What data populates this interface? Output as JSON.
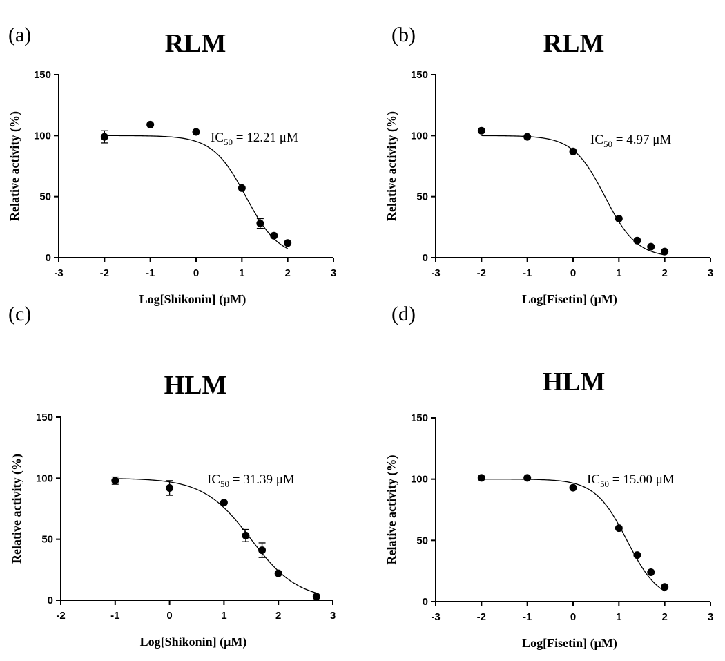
{
  "chart_data": [
    {
      "panel": "(a)",
      "type": "scatter",
      "title": "RLM",
      "xlabel": "Log[Shikonin] (μM)",
      "ylabel": "Relative activity (%)",
      "xlim": [
        -3,
        3
      ],
      "ylim": [
        0,
        150
      ],
      "xticks": [
        -3,
        -2,
        -1,
        0,
        1,
        2,
        3
      ],
      "yticks": [
        0,
        50,
        100,
        150
      ],
      "points": [
        {
          "x": -2,
          "y": 99,
          "err": 5
        },
        {
          "x": -1,
          "y": 109,
          "err": 0
        },
        {
          "x": 0,
          "y": 103,
          "err": 0
        },
        {
          "x": 1,
          "y": 57,
          "err": 0
        },
        {
          "x": 1.4,
          "y": 28,
          "err": 4
        },
        {
          "x": 1.7,
          "y": 18,
          "err": 0
        },
        {
          "x": 2,
          "y": 12,
          "err": 0
        }
      ],
      "fit": {
        "top": 100,
        "bottom": 0,
        "log_ic50": 1.087,
        "hill": 1.2
      },
      "annotation": {
        "prefix": "IC",
        "sub": "50",
        "suffix": " = 12.21 μM"
      }
    },
    {
      "panel": "(b)",
      "type": "scatter",
      "title": "RLM",
      "xlabel": "Log[Fisetin]  (μM)",
      "ylabel": "Relative activity (%)",
      "xlim": [
        -3,
        3
      ],
      "ylim": [
        0,
        150
      ],
      "xticks": [
        -3,
        -2,
        -1,
        0,
        1,
        2,
        3
      ],
      "yticks": [
        0,
        50,
        100,
        150
      ],
      "points": [
        {
          "x": -2,
          "y": 104,
          "err": 0
        },
        {
          "x": -1,
          "y": 99,
          "err": 0
        },
        {
          "x": 0,
          "y": 87,
          "err": 0
        },
        {
          "x": 1,
          "y": 32,
          "err": 0
        },
        {
          "x": 1.4,
          "y": 14,
          "err": 0
        },
        {
          "x": 1.7,
          "y": 9,
          "err": 0
        },
        {
          "x": 2,
          "y": 5,
          "err": 0
        }
      ],
      "fit": {
        "top": 100,
        "bottom": 0,
        "log_ic50": 0.696,
        "hill": 1.25
      },
      "annotation": {
        "prefix": "IC",
        "sub": "50",
        "suffix": " =  4.97 μM"
      }
    },
    {
      "panel": "(c)",
      "type": "scatter",
      "title": "HLM",
      "xlabel": "Log[Shikonin] (μM)",
      "ylabel": "Relative activity (%)",
      "xlim": [
        -2,
        3
      ],
      "ylim": [
        0,
        150
      ],
      "xticks": [
        -2,
        -1,
        0,
        1,
        2,
        3
      ],
      "yticks": [
        0,
        50,
        100,
        150
      ],
      "points": [
        {
          "x": -1,
          "y": 98,
          "err": 3
        },
        {
          "x": 0,
          "y": 92,
          "err": 6
        },
        {
          "x": 1,
          "y": 80,
          "err": 0
        },
        {
          "x": 1.4,
          "y": 53,
          "err": 5
        },
        {
          "x": 1.7,
          "y": 41,
          "err": 6
        },
        {
          "x": 2,
          "y": 22,
          "err": 0
        },
        {
          "x": 2.7,
          "y": 3,
          "err": 0
        }
      ],
      "fit": {
        "top": 100,
        "bottom": 0,
        "log_ic50": 1.497,
        "hill": 1.0
      },
      "annotation": {
        "prefix": "IC",
        "sub": "50",
        "suffix": " = 31.39 μM"
      }
    },
    {
      "panel": "(d)",
      "type": "scatter",
      "title": "HLM",
      "xlabel": "Log[Fisetin]  (μM)",
      "ylabel": "Relative activity (%)",
      "xlim": [
        -3,
        3
      ],
      "ylim": [
        0,
        150
      ],
      "xticks": [
        -3,
        -2,
        -1,
        0,
        1,
        2,
        3
      ],
      "yticks": [
        0,
        50,
        100,
        150
      ],
      "points": [
        {
          "x": -2,
          "y": 101,
          "err": 0
        },
        {
          "x": -1,
          "y": 101,
          "err": 0
        },
        {
          "x": 0,
          "y": 93,
          "err": 0
        },
        {
          "x": 1,
          "y": 60,
          "err": 0
        },
        {
          "x": 1.4,
          "y": 38,
          "err": 0
        },
        {
          "x": 1.7,
          "y": 24,
          "err": 0
        },
        {
          "x": 2,
          "y": 12,
          "err": 0
        }
      ],
      "fit": {
        "top": 100,
        "bottom": 0,
        "log_ic50": 1.176,
        "hill": 1.25
      },
      "annotation": {
        "prefix": "IC",
        "sub": "50",
        "suffix": " = 15.00 μM"
      }
    }
  ]
}
